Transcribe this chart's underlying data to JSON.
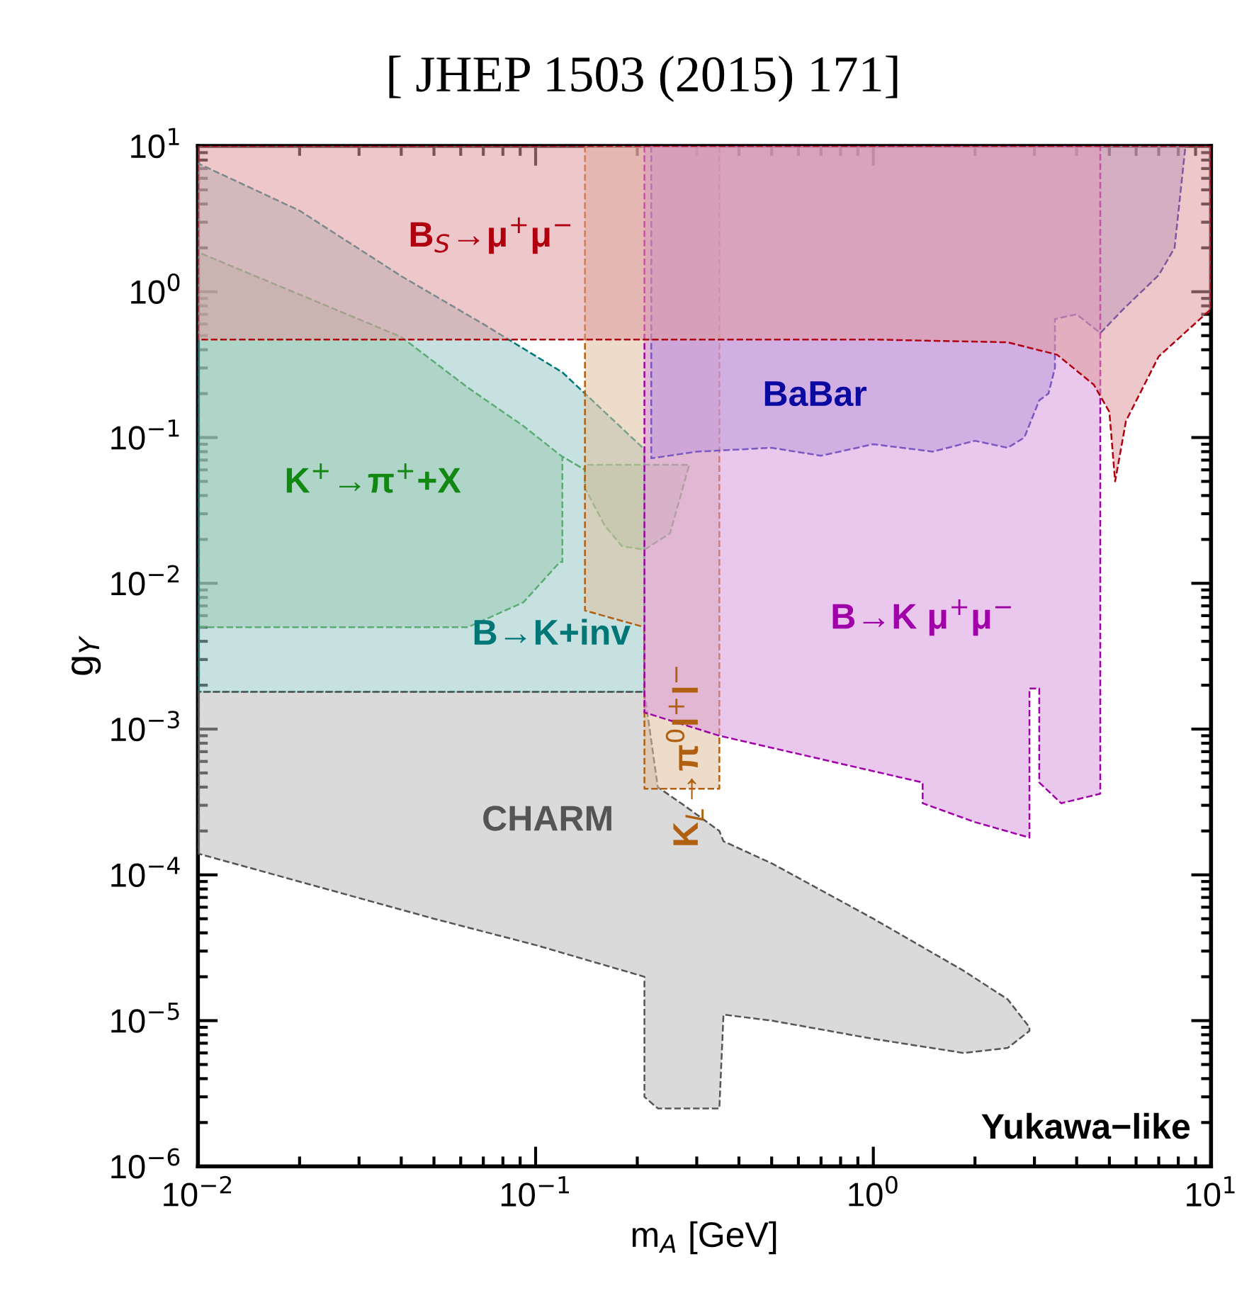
{
  "chart_data": {
    "type": "area",
    "title": "[ JHEP 1503 (2015) 171]",
    "xlabel": "m$_{A}$ [GeV]",
    "ylabel": "g$_{Y}$",
    "log": "xy",
    "grid": false,
    "legend": false,
    "xlim": [
      0.01,
      10
    ],
    "ylim": [
      1e-06,
      10
    ],
    "xticks": [
      {
        "value": 0.01,
        "label": "10$^{−2}$"
      },
      {
        "value": 0.1,
        "label": "10$^{−1}$"
      },
      {
        "value": 1,
        "label": "10$^{0}$"
      },
      {
        "value": 10,
        "label": "10$^{1}$"
      }
    ],
    "yticks": [
      {
        "value": 1e-06,
        "label": "10$^{−6}$"
      },
      {
        "value": 1e-05,
        "label": "10$^{−5}$"
      },
      {
        "value": 0.0001,
        "label": "10$^{−4}$"
      },
      {
        "value": 0.001,
        "label": "10$^{−3}$"
      },
      {
        "value": 0.01,
        "label": "10$^{−2}$"
      },
      {
        "value": 0.1,
        "label": "10$^{−1}$"
      },
      {
        "value": 1,
        "label": "10$^{0}$"
      },
      {
        "value": 10,
        "label": "10$^{1}$"
      }
    ],
    "series": [
      {
        "name": "K$^{+}$→π$^{+}$+X",
        "color": "#118811",
        "values": [
          null,
          null,
          null,
          null,
          null,
          null,
          null,
          null,
          null,
          null,
          null,
          null,
          null,
          null
        ],
        "x": [
          0.01,
          0.04,
          0.063,
          0.092,
          0.118,
          0.12,
          0.12,
          0.14,
          0.14,
          0.16,
          0.18,
          0.21,
          0.25,
          0.285
        ],
        "lower": [
          0.005,
          0.005,
          0.005,
          0.0074,
          0.014,
          0.014,
          0.074,
          0.06,
          0.045,
          0.025,
          0.018,
          0.017,
          0.022,
          0.065
        ],
        "upper": [
          1.87,
          0.49,
          0.22,
          0.12,
          0.076,
          0.074,
          0.074,
          0.06,
          0.065,
          0.065,
          0.065,
          0.065,
          0.065,
          0.065
        ]
      },
      {
        "name": "B→K+inv",
        "color": "#007777",
        "values": [
          null,
          null,
          null,
          null,
          null,
          null
        ],
        "x": [
          0.01,
          0.02,
          0.04,
          0.07,
          0.12,
          0.21
        ],
        "lower": [
          0.0018,
          0.0018,
          0.0018,
          0.0018,
          0.0018,
          0.0018
        ],
        "upper": [
          7.6,
          3.6,
          1.28,
          0.6,
          0.28,
          0.083
        ]
      },
      {
        "name": "CHARM",
        "color": "#555555",
        "values": [
          null,
          null,
          null,
          null,
          null,
          null,
          null,
          null,
          null,
          null,
          null,
          null,
          null,
          null
        ],
        "x": [
          0.01,
          0.05,
          0.1,
          0.21,
          0.21,
          0.23,
          0.275,
          0.35,
          0.36,
          0.5,
          1.0,
          1.85,
          2.5,
          2.9
        ],
        "lower": [
          0.00014,
          5e-05,
          3.3e-05,
          2e-05,
          3e-06,
          2.5e-06,
          2.5e-06,
          2.5e-06,
          1.1e-05,
          1e-05,
          7.5e-06,
          6e-06,
          6.5e-06,
          8.5e-06
        ],
        "upper": [
          0.0018,
          0.0018,
          0.0018,
          0.0018,
          0.0018,
          0.0004,
          0.0003,
          0.0002,
          0.00017,
          0.00012,
          5e-05,
          2.2e-05,
          1.4e-05,
          9e-06
        ]
      },
      {
        "name": "K$_{L}$→π$^{0}$l$^{+}$l$^{−}$",
        "color": "#b06010",
        "values": [
          null,
          null,
          null,
          null
        ],
        "x": [
          0.14,
          0.21,
          0.21,
          0.35
        ],
        "lower": [
          0.0065,
          0.005,
          0.00039,
          0.00039
        ],
        "upper": [
          10,
          10,
          10,
          10
        ]
      },
      {
        "name": "BaBar",
        "color": "#0a0aa0",
        "values": [
          null,
          null,
          null,
          null,
          null,
          null,
          null,
          null,
          null,
          null,
          null,
          null,
          null,
          null,
          null,
          null,
          null,
          null,
          null
        ],
        "x": [
          0.22,
          0.3,
          0.5,
          0.7,
          1.0,
          1.5,
          2.0,
          2.5,
          2.8,
          3.1,
          3.3,
          3.45,
          3.45,
          4.0,
          4.7,
          5.5,
          7.0,
          7.8,
          8.4
        ],
        "lower": [
          0.072,
          0.08,
          0.085,
          0.075,
          0.09,
          0.08,
          0.095,
          0.085,
          0.1,
          0.18,
          0.2,
          0.3,
          0.65,
          0.7,
          0.52,
          0.76,
          1.3,
          2.0,
          10
        ],
        "upper": [
          10,
          10,
          10,
          10,
          10,
          10,
          10,
          10,
          10,
          10,
          10,
          10,
          10,
          10,
          10,
          10,
          10,
          10,
          10
        ]
      },
      {
        "name": "B→K μ$^{+}$μ$^{−}$",
        "color": "#a000a8",
        "values": [
          null,
          null,
          null,
          null,
          null,
          null,
          null,
          null,
          null,
          null,
          null
        ],
        "x": [
          0.21,
          0.35,
          1.4,
          1.4,
          2.0,
          2.9,
          2.9,
          3.1,
          3.1,
          3.6,
          4.7
        ],
        "lower": [
          0.0013,
          0.0009,
          0.00043,
          0.00031,
          0.00023,
          0.00018,
          0.0019,
          0.0019,
          0.00043,
          0.00031,
          0.00036
        ],
        "upper": [
          10,
          10,
          10,
          10,
          10,
          10,
          10,
          10,
          10,
          10,
          10
        ]
      },
      {
        "name": "B$_{S}$→μ$^{+}$μ$^{−}$",
        "color": "#b00010",
        "values": [
          null,
          null,
          null,
          null,
          null,
          null,
          null,
          null,
          null,
          null
        ],
        "x": [
          0.01,
          1.0,
          2.5,
          3.5,
          4.5,
          5.0,
          5.2,
          5.6,
          7.0,
          10
        ],
        "lower": [
          0.47,
          0.47,
          0.45,
          0.37,
          0.23,
          0.15,
          0.05,
          0.13,
          0.36,
          0.76
        ],
        "upper": [
          10,
          10,
          10,
          10,
          10,
          10,
          10,
          10,
          10,
          10
        ]
      }
    ],
    "annotations": [
      "Yukawa−like"
    ]
  }
}
